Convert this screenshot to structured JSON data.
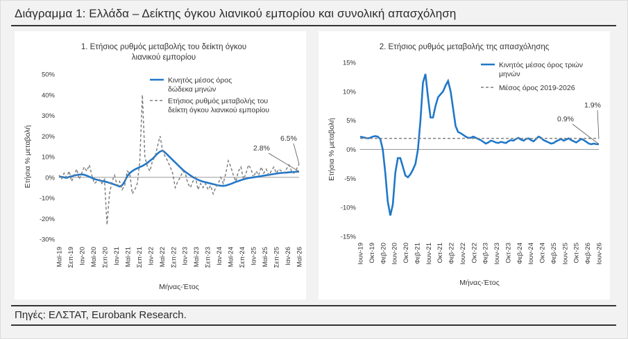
{
  "figure": {
    "title": "Διάγραμμα 1: Ελλάδα – Δείκτης όγκου λιανικού εμπορίου και συνολική απασχόληση",
    "source": "Πηγές: ΕΛΣΤΑΤ, Eurobank Research."
  },
  "colors": {
    "series_solid": "#1f77c9",
    "series_dashed": "#7f7f7f",
    "zero_line": "#999999",
    "text": "#333333"
  },
  "chart_data": [
    {
      "type": "line",
      "title_line1": "1. Ετήσιος ρυθμός μεταβολής του δείκτη όγκου",
      "title_line2": "λιανικού εμπορίου",
      "xlabel": "Μήνας-Έτος",
      "ylabel": "Ετήσια % μεταβολή",
      "ylim": [
        -30,
        50
      ],
      "y_ticks": [
        -30,
        -20,
        -10,
        0,
        10,
        20,
        30,
        40,
        50
      ],
      "y_tick_labels": [
        "-30%",
        "-20%",
        "-10%",
        "0%",
        "10%",
        "20%",
        "30%",
        "40%",
        "50%"
      ],
      "x_tick_labels": [
        "Μαϊ-19",
        "Σεπ-19",
        "Ιαν-20",
        "Μαϊ-20",
        "Σεπ-20",
        "Ιαν-21",
        "Μαϊ-21",
        "Σεπ-21",
        "Ιαν-22",
        "Μαϊ-22",
        "Σεπ-22",
        "Ιαν-23",
        "Μαϊ-23",
        "Σεπ-23",
        "Ιαν-24",
        "Μαϊ-24",
        "Σεπ-24",
        "Ιαν-25",
        "Μαϊ-25",
        "Σεπ-25",
        "Ιαν-26",
        "Μαϊ-26"
      ],
      "legend_position": "top-right",
      "series": [
        {
          "name": "Κινητός μέσος όρος δώδεκα μηνών",
          "style": "solid",
          "values": [
            0.5,
            0.2,
            0,
            -0.3,
            0.2,
            0.5,
            0.9,
            1.1,
            1.3,
            1.4,
            1.2,
            0.8,
            0.3,
            -0.3,
            -0.8,
            -1.2,
            -1.5,
            -1.8,
            -2.0,
            -2.3,
            -2.7,
            -3.1,
            -3.5,
            -4.0,
            -4.5,
            -3.8,
            -2.0,
            0.5,
            2.0,
            3.0,
            3.8,
            4.4,
            5.0,
            5.5,
            6.2,
            7.0,
            8.0,
            9.0,
            10.2,
            11.5,
            12.5,
            13.0,
            12.0,
            10.8,
            9.6,
            8.4,
            7.2,
            6.0,
            4.8,
            3.6,
            2.6,
            1.8,
            0.9,
            0.1,
            -0.6,
            -1.2,
            -1.7,
            -2.1,
            -2.4,
            -2.7,
            -3.0,
            -3.3,
            -3.6,
            -3.9,
            -4.1,
            -4.2,
            -4.0,
            -3.6,
            -3.2,
            -2.7,
            -2.2,
            -1.8,
            -1.4,
            -1.0,
            -0.7,
            -0.4,
            -0.2,
            0,
            0.2,
            0.4,
            0.6,
            0.8,
            1.0,
            1.2,
            1.4,
            1.6,
            1.8,
            2.0,
            2.1,
            2.2,
            2.3,
            2.4,
            2.5,
            2.6,
            2.7,
            2.8
          ]
        },
        {
          "name": "Ετήσιος ρυθμός μεταβολής του δείκτη όγκου λιανικού εμπορίου",
          "style": "dashed",
          "values": [
            1,
            -1,
            2,
            0,
            3,
            -2,
            1,
            4,
            -1,
            2,
            5,
            3,
            6,
            1,
            -3,
            -2,
            -1,
            -3,
            -1,
            -23,
            -8,
            -2,
            1,
            -4,
            -2,
            -6,
            -4,
            3,
            2,
            -8,
            -6,
            -3,
            8,
            40,
            10,
            5,
            3,
            8,
            10,
            15,
            20,
            13,
            10,
            8,
            5,
            2,
            -5,
            -2,
            0,
            3,
            2,
            -3,
            -5,
            -2,
            0,
            -6,
            -3,
            -5,
            -3,
            -6,
            -4,
            -8,
            -5,
            -3,
            0,
            -3,
            2,
            8,
            5,
            1,
            -2,
            3,
            5,
            -1,
            2,
            6,
            4,
            0,
            3,
            1,
            5,
            2,
            4,
            1,
            3,
            5,
            2,
            4,
            3,
            2,
            4,
            6,
            3,
            2,
            4,
            6.5
          ]
        }
      ],
      "annotations": [
        {
          "text": "2.8%",
          "series": 0,
          "index": 95
        },
        {
          "text": "6.5%",
          "series": 1,
          "index": 95
        }
      ]
    },
    {
      "type": "line",
      "title": "2. Ετήσιος ρυθμός μεταβολής της απασχόλησης",
      "xlabel": "Μήνας-Έτος",
      "ylabel": "Ετήσια % μεταβολή",
      "ylim": [
        -15,
        15
      ],
      "y_ticks": [
        -15,
        -10,
        -5,
        0,
        5,
        10,
        15
      ],
      "y_tick_labels": [
        "-15%",
        "-10%",
        "-5%",
        "0%",
        "5%",
        "10%",
        "15%"
      ],
      "x_tick_labels": [
        "Ιουν-19",
        "Οκτ-19",
        "Φεβ-20",
        "Ιουν-20",
        "Οκτ-20",
        "Φεβ-21",
        "Ιουν-21",
        "Οκτ-21",
        "Φεβ-22",
        "Ιουν-22",
        "Οκτ-22",
        "Φεβ-23",
        "Ιουν-23",
        "Οκτ-23",
        "Φεβ-24",
        "Ιουν-24",
        "Οκτ-24",
        "Φεβ-25",
        "Ιουν-25",
        "Οκτ-25",
        "Φεβ-26",
        "Ιουν-26"
      ],
      "legend_position": "top-right",
      "series": [
        {
          "name": "Κινητός μέσος όρος τριών μηνών",
          "style": "solid",
          "values": [
            2.2,
            2.1,
            2.0,
            1.9,
            2.0,
            2.2,
            2.3,
            2.2,
            1.8,
            0,
            -4,
            -9,
            -11.4,
            -9.5,
            -4,
            -1.5,
            -1.5,
            -3,
            -4.5,
            -4.8,
            -4.3,
            -3.5,
            -2.5,
            0,
            5,
            11.5,
            13,
            9,
            5.5,
            5.5,
            7.5,
            9,
            9.5,
            10,
            11,
            11.8,
            10,
            7,
            4,
            3,
            2.8,
            2.5,
            2.2,
            2.0,
            2.0,
            2.2,
            2.0,
            1.8,
            1.6,
            1.3,
            1.0,
            1.2,
            1.5,
            1.4,
            1.2,
            1.1,
            1.3,
            1.2,
            1.1,
            1.4,
            1.6,
            1.5,
            1.8,
            2.0,
            1.7,
            1.5,
            1.8,
            1.9,
            1.6,
            1.4,
            1.8,
            2.2,
            2.0,
            1.6,
            1.4,
            1.2,
            1.0,
            1.1,
            1.4,
            1.6,
            1.8,
            1.5,
            1.7,
            1.9,
            1.6,
            1.4,
            1.2,
            1.5,
            1.8,
            1.6,
            1.3,
            1.0,
            0.9,
            1.0,
            0.9,
            0.9
          ]
        },
        {
          "name": "Μέσος όρος 2019-2026",
          "style": "dashed",
          "constant": 1.9
        }
      ],
      "annotations": [
        {
          "text": "0.9%",
          "series": 0,
          "index": 95
        },
        {
          "text": "1.9%",
          "series": 1,
          "index": 95
        }
      ]
    }
  ]
}
